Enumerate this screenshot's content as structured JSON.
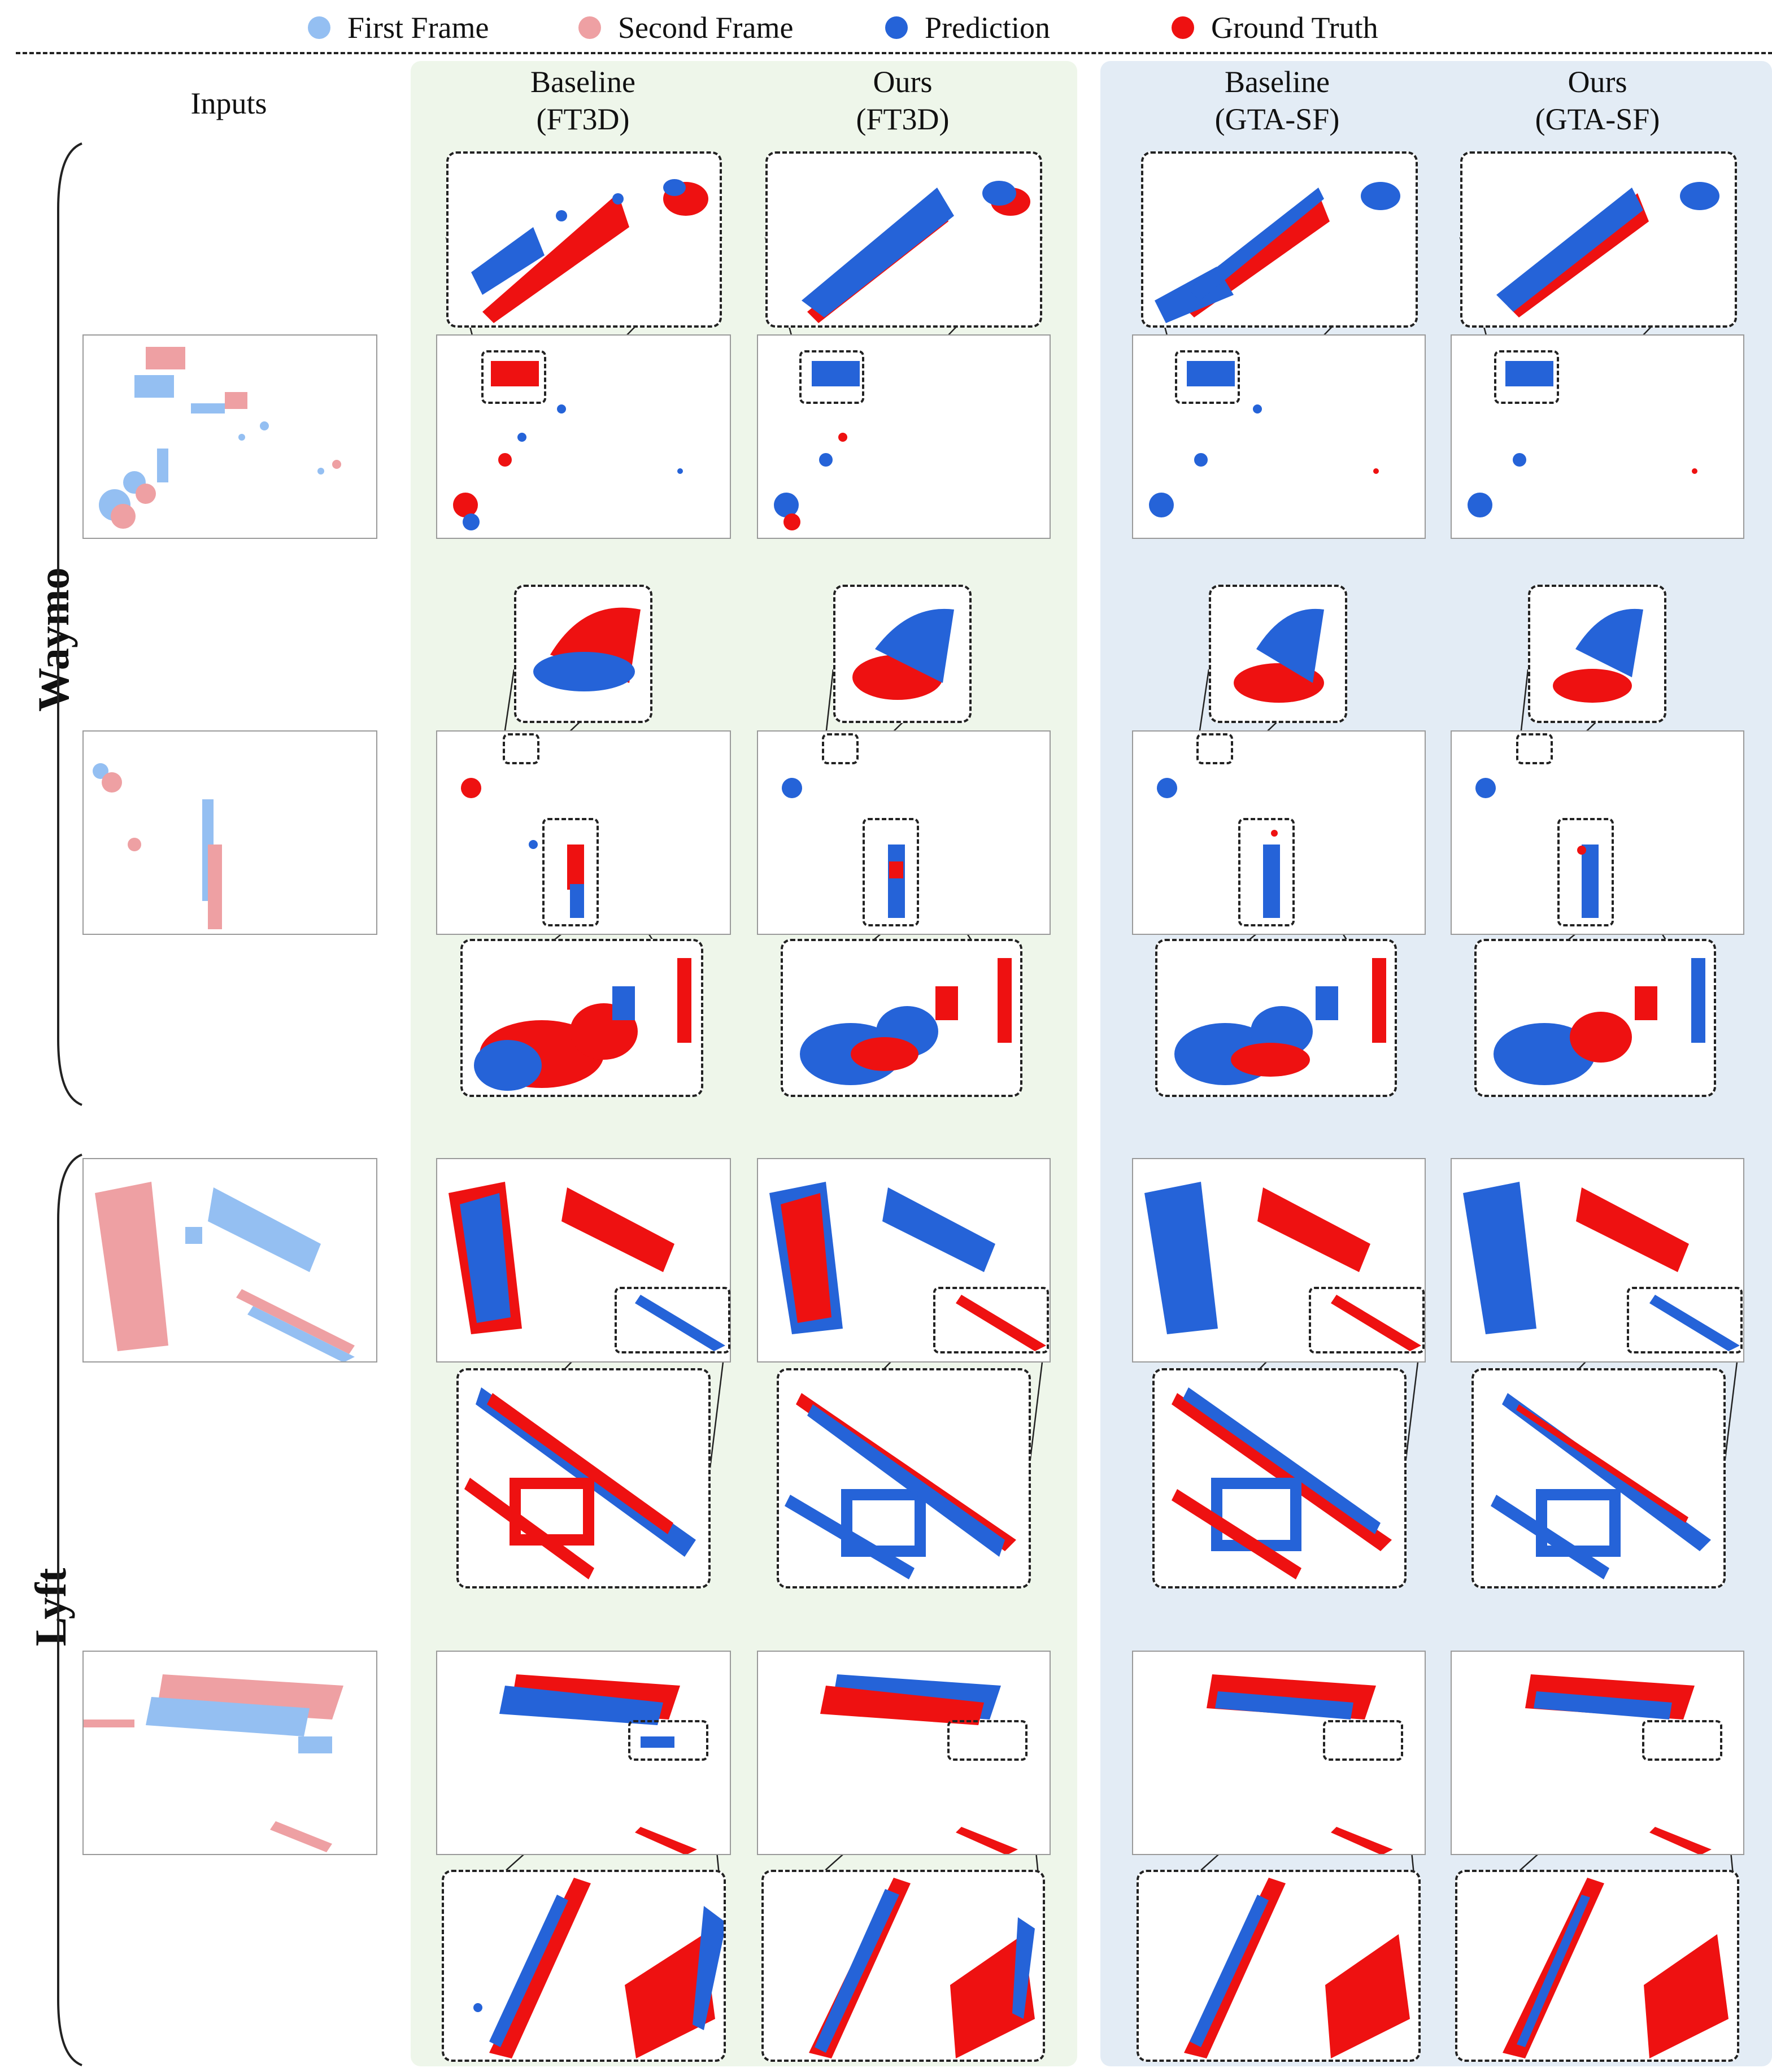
{
  "legend": [
    {
      "label": "First Frame",
      "color": "#94bff2"
    },
    {
      "label": "Second Frame",
      "color": "#eea0a3"
    },
    {
      "label": "Prediction",
      "color": "#2563d8"
    },
    {
      "label": "Ground Truth",
      "color": "#ee1111"
    }
  ],
  "columns": {
    "inputs": "Inputs",
    "baseline_ft3d": {
      "line1": "Baseline",
      "line2": "(FT3D)"
    },
    "ours_ft3d": {
      "line1": "Ours",
      "line2": "(FT3D)"
    },
    "baseline_gta": {
      "line1": "Baseline",
      "line2": "(GTA-SF)"
    },
    "ours_gta": {
      "line1": "Ours",
      "line2": "(GTA-SF)"
    }
  },
  "rows": {
    "waymo": "Waymo",
    "lyft": "Lyft"
  },
  "colors": {
    "first_frame": "#94bff2",
    "second_frame": "#eea0a3",
    "prediction": "#2563d8",
    "ground_truth": "#ee1111",
    "panel_green": "#eef6ea",
    "panel_blue": "#e3ecf5"
  }
}
